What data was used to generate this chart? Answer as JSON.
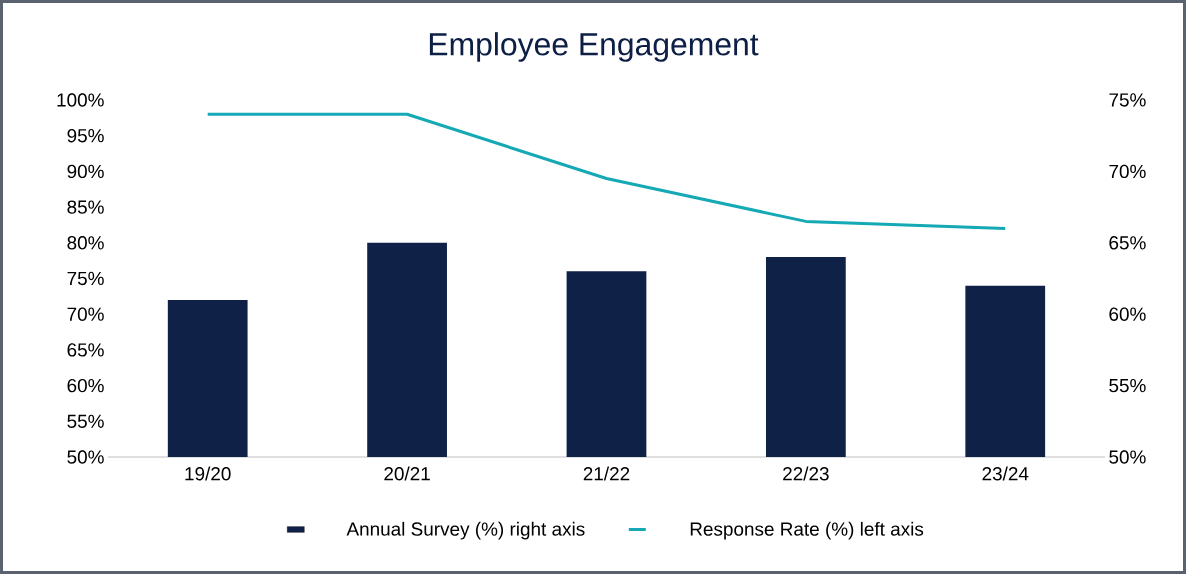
{
  "chart_data": {
    "type": "bar",
    "title": "Employee Engagement",
    "categories": [
      "19/20",
      "20/21",
      "21/22",
      "22/23",
      "23/24"
    ],
    "series": [
      {
        "name": "Annual Survey (%) right axis",
        "axis": "y2",
        "color": "#0f2147",
        "values": [
          61,
          65,
          63,
          64,
          62
        ]
      },
      {
        "name": "Response Rate (%) left axis",
        "type": "line",
        "color": "#14a9b5",
        "values": [
          98,
          98,
          89,
          83,
          82
        ]
      }
    ],
    "ylim": [
      50,
      100
    ],
    "yticks": [
      {
        "value": 50,
        "label": "50%"
      },
      {
        "value": 55,
        "label": "55%"
      },
      {
        "value": 60,
        "label": "60%"
      },
      {
        "value": 65,
        "label": "65%"
      },
      {
        "value": 70,
        "label": "70%"
      },
      {
        "value": 75,
        "label": "75%"
      },
      {
        "value": 80,
        "label": "80%"
      },
      {
        "value": 85,
        "label": "85%"
      },
      {
        "value": 90,
        "label": "90%"
      },
      {
        "value": 95,
        "label": "95%"
      },
      {
        "value": 100,
        "label": "100%"
      }
    ],
    "y2lim": [
      50,
      75
    ],
    "y2ticks": [
      {
        "value": 50,
        "label": "50%"
      },
      {
        "value": 55,
        "label": "55%"
      },
      {
        "value": 60,
        "label": "60%"
      },
      {
        "value": 65,
        "label": "65%"
      },
      {
        "value": 70,
        "label": "70%"
      },
      {
        "value": 75,
        "label": "75%"
      }
    ],
    "grid": false,
    "legend": "bottom",
    "marker": "none",
    "line_style": "solid"
  }
}
